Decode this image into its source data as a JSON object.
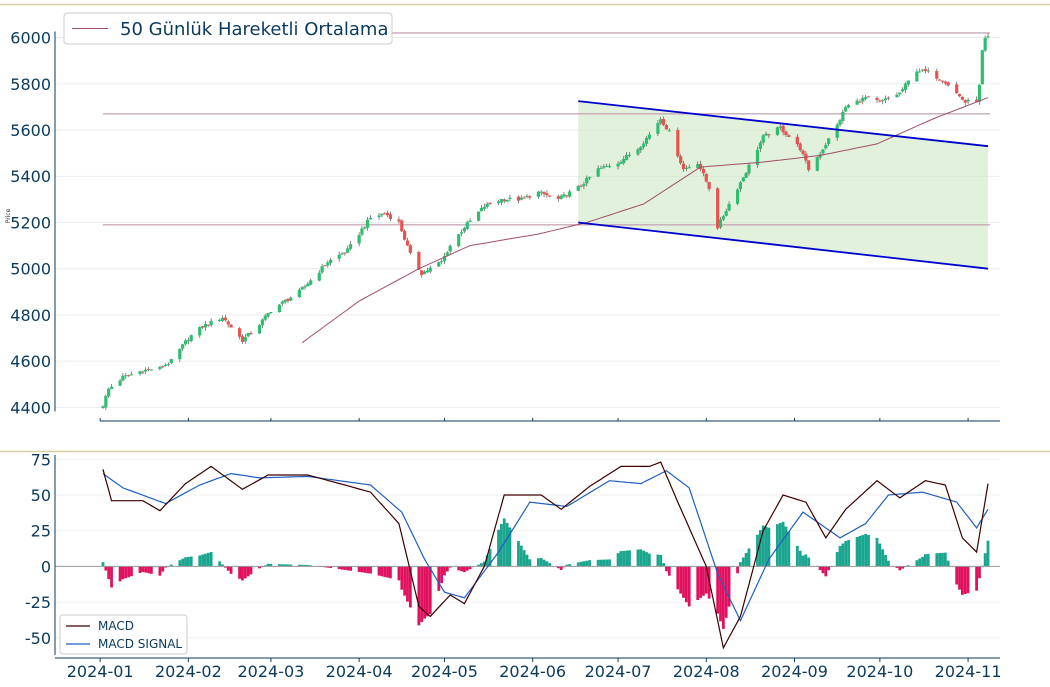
{
  "colors": {
    "up": "#26a69a",
    "down": "#ef5350",
    "up_candle": "#2ebd71",
    "down_candle": "#e8534f",
    "ma": "#a05068",
    "hline": "#c9a9b8",
    "channel": "#0000cc",
    "channel_fill": "#c8e6c0",
    "macd": "#3a0000",
    "signal": "#1f5fbf",
    "hist_pos": "#1aa58f",
    "hist_neg": "#e0115f",
    "axis": "#0b3a5c",
    "top_rule": "#d8cfa0"
  },
  "chart_data": [
    {
      "type": "candlestick",
      "ylabel": "Price",
      "ylim": [
        4380,
        6050
      ],
      "yticks": [
        4400,
        4600,
        4800,
        5000,
        5200,
        5400,
        5600,
        5800,
        6000
      ],
      "legend": {
        "position": "top-left",
        "entries": [
          {
            "label": "50 Günlük Hareketli Ortalama"
          }
        ]
      },
      "horizontal_lines": [
        6020,
        5670,
        5190
      ],
      "channel": {
        "upper": {
          "from": [
            "2024-06-17",
            5725
          ],
          "to": [
            "2024-11-08",
            5530
          ]
        },
        "lower": {
          "from": [
            "2024-06-17",
            5200
          ],
          "to": [
            "2024-11-08",
            5000
          ]
        }
      },
      "close_anchors": [
        [
          "2024-01-02",
          4410
        ],
        [
          "2024-01-04",
          4480
        ],
        [
          "2024-01-09",
          4530
        ],
        [
          "2024-01-16",
          4560
        ],
        [
          "2024-01-22",
          4570
        ],
        [
          "2024-01-26",
          4600
        ],
        [
          "2024-02-01",
          4700
        ],
        [
          "2024-02-06",
          4750
        ],
        [
          "2024-02-13",
          4790
        ],
        [
          "2024-02-20",
          4690
        ],
        [
          "2024-02-26",
          4760
        ],
        [
          "2024-03-01",
          4820
        ],
        [
          "2024-03-06",
          4860
        ],
        [
          "2024-03-11",
          4900
        ],
        [
          "2024-03-15",
          4950
        ],
        [
          "2024-03-21",
          5030
        ],
        [
          "2024-03-28",
          5080
        ],
        [
          "2024-04-02",
          5170
        ],
        [
          "2024-04-05",
          5220
        ],
        [
          "2024-04-10",
          5240
        ],
        [
          "2024-04-15",
          5200
        ],
        [
          "2024-04-19",
          5060
        ],
        [
          "2024-04-23",
          4980
        ],
        [
          "2024-04-30",
          5030
        ],
        [
          "2024-05-03",
          5100
        ],
        [
          "2024-05-08",
          5180
        ],
        [
          "2024-05-15",
          5270
        ],
        [
          "2024-05-21",
          5300
        ],
        [
          "2024-05-28",
          5300
        ],
        [
          "2024-06-03",
          5330
        ],
        [
          "2024-06-10",
          5300
        ],
        [
          "2024-06-17",
          5350
        ],
        [
          "2024-06-24",
          5430
        ],
        [
          "2024-07-01",
          5460
        ],
        [
          "2024-07-08",
          5520
        ],
        [
          "2024-07-12",
          5580
        ],
        [
          "2024-07-16",
          5650
        ],
        [
          "2024-07-19",
          5590
        ],
        [
          "2024-07-24",
          5430
        ],
        [
          "2024-07-29",
          5460
        ],
        [
          "2024-08-02",
          5350
        ],
        [
          "2024-08-05",
          5180
        ],
        [
          "2024-08-09",
          5280
        ],
        [
          "2024-08-15",
          5420
        ],
        [
          "2024-08-21",
          5570
        ],
        [
          "2024-08-27",
          5610
        ],
        [
          "2024-09-03",
          5520
        ],
        [
          "2024-09-06",
          5430
        ],
        [
          "2024-09-10",
          5500
        ],
        [
          "2024-09-16",
          5620
        ],
        [
          "2024-09-19",
          5700
        ],
        [
          "2024-09-26",
          5740
        ],
        [
          "2024-10-01",
          5720
        ],
        [
          "2024-10-08",
          5760
        ],
        [
          "2024-10-14",
          5860
        ],
        [
          "2024-10-18",
          5850
        ],
        [
          "2024-10-24",
          5810
        ],
        [
          "2024-10-31",
          5720
        ],
        [
          "2024-11-04",
          5730
        ],
        [
          "2024-11-05",
          5790
        ],
        [
          "2024-11-06",
          5940
        ],
        [
          "2024-11-07",
          5990
        ],
        [
          "2024-11-08",
          6000
        ]
      ],
      "ma50_anchors": [
        [
          "2024-03-12",
          4680
        ],
        [
          "2024-04-01",
          4860
        ],
        [
          "2024-04-22",
          5000
        ],
        [
          "2024-05-10",
          5100
        ],
        [
          "2024-06-03",
          5150
        ],
        [
          "2024-06-20",
          5200
        ],
        [
          "2024-07-10",
          5280
        ],
        [
          "2024-07-30",
          5440
        ],
        [
          "2024-08-20",
          5460
        ],
        [
          "2024-09-10",
          5490
        ],
        [
          "2024-09-30",
          5540
        ],
        [
          "2024-10-20",
          5650
        ],
        [
          "2024-11-08",
          5740
        ]
      ]
    },
    {
      "type": "line",
      "ylim": [
        -62,
        78
      ],
      "yticks": [
        -50,
        -25,
        0,
        25,
        50,
        75
      ],
      "legend": {
        "position": "bottom-left",
        "entries": [
          {
            "label": "MACD"
          },
          {
            "label": "MACD SIGNAL"
          }
        ]
      },
      "x_ticks": [
        "2024-01",
        "2024-02",
        "2024-03",
        "2024-04",
        "2024-05",
        "2024-06",
        "2024-07",
        "2024-08",
        "2024-09",
        "2024-10",
        "2024-11"
      ],
      "macd_anchors": [
        [
          "2024-01-02",
          68
        ],
        [
          "2024-01-05",
          46
        ],
        [
          "2024-01-16",
          46
        ],
        [
          "2024-01-22",
          39
        ],
        [
          "2024-01-31",
          58
        ],
        [
          "2024-02-09",
          70
        ],
        [
          "2024-02-20",
          54
        ],
        [
          "2024-02-29",
          64
        ],
        [
          "2024-03-14",
          64
        ],
        [
          "2024-03-27",
          57
        ],
        [
          "2024-04-05",
          52
        ],
        [
          "2024-04-15",
          30
        ],
        [
          "2024-04-22",
          -28
        ],
        [
          "2024-04-26",
          -35
        ],
        [
          "2024-05-03",
          -20
        ],
        [
          "2024-05-08",
          -26
        ],
        [
          "2024-05-15",
          0
        ],
        [
          "2024-05-22",
          50
        ],
        [
          "2024-06-04",
          50
        ],
        [
          "2024-06-11",
          40
        ],
        [
          "2024-06-21",
          56
        ],
        [
          "2024-07-02",
          70
        ],
        [
          "2024-07-12",
          70
        ],
        [
          "2024-07-16",
          73
        ],
        [
          "2024-07-22",
          45
        ],
        [
          "2024-08-01",
          0
        ],
        [
          "2024-08-07",
          -57
        ],
        [
          "2024-08-13",
          -35
        ],
        [
          "2024-08-21",
          25
        ],
        [
          "2024-08-28",
          50
        ],
        [
          "2024-09-05",
          45
        ],
        [
          "2024-09-12",
          20
        ],
        [
          "2024-09-19",
          40
        ],
        [
          "2024-09-30",
          60
        ],
        [
          "2024-10-08",
          48
        ],
        [
          "2024-10-17",
          60
        ],
        [
          "2024-10-24",
          57
        ],
        [
          "2024-10-30",
          20
        ],
        [
          "2024-11-04",
          10
        ],
        [
          "2024-11-08",
          58
        ]
      ],
      "signal_anchors": [
        [
          "2024-01-02",
          65
        ],
        [
          "2024-01-09",
          55
        ],
        [
          "2024-01-24",
          44
        ],
        [
          "2024-02-05",
          57
        ],
        [
          "2024-02-16",
          65
        ],
        [
          "2024-02-26",
          62
        ],
        [
          "2024-03-14",
          63
        ],
        [
          "2024-04-05",
          57
        ],
        [
          "2024-04-16",
          38
        ],
        [
          "2024-04-24",
          5
        ],
        [
          "2024-05-01",
          -18
        ],
        [
          "2024-05-08",
          -22
        ],
        [
          "2024-05-20",
          10
        ],
        [
          "2024-05-31",
          45
        ],
        [
          "2024-06-13",
          42
        ],
        [
          "2024-06-28",
          60
        ],
        [
          "2024-07-09",
          58
        ],
        [
          "2024-07-18",
          67
        ],
        [
          "2024-07-26",
          55
        ],
        [
          "2024-08-05",
          -5
        ],
        [
          "2024-08-13",
          -38
        ],
        [
          "2024-08-23",
          5
        ],
        [
          "2024-09-04",
          38
        ],
        [
          "2024-09-17",
          20
        ],
        [
          "2024-09-26",
          30
        ],
        [
          "2024-10-04",
          50
        ],
        [
          "2024-10-16",
          52
        ],
        [
          "2024-10-28",
          45
        ],
        [
          "2024-11-04",
          27
        ],
        [
          "2024-11-08",
          40
        ]
      ]
    }
  ]
}
